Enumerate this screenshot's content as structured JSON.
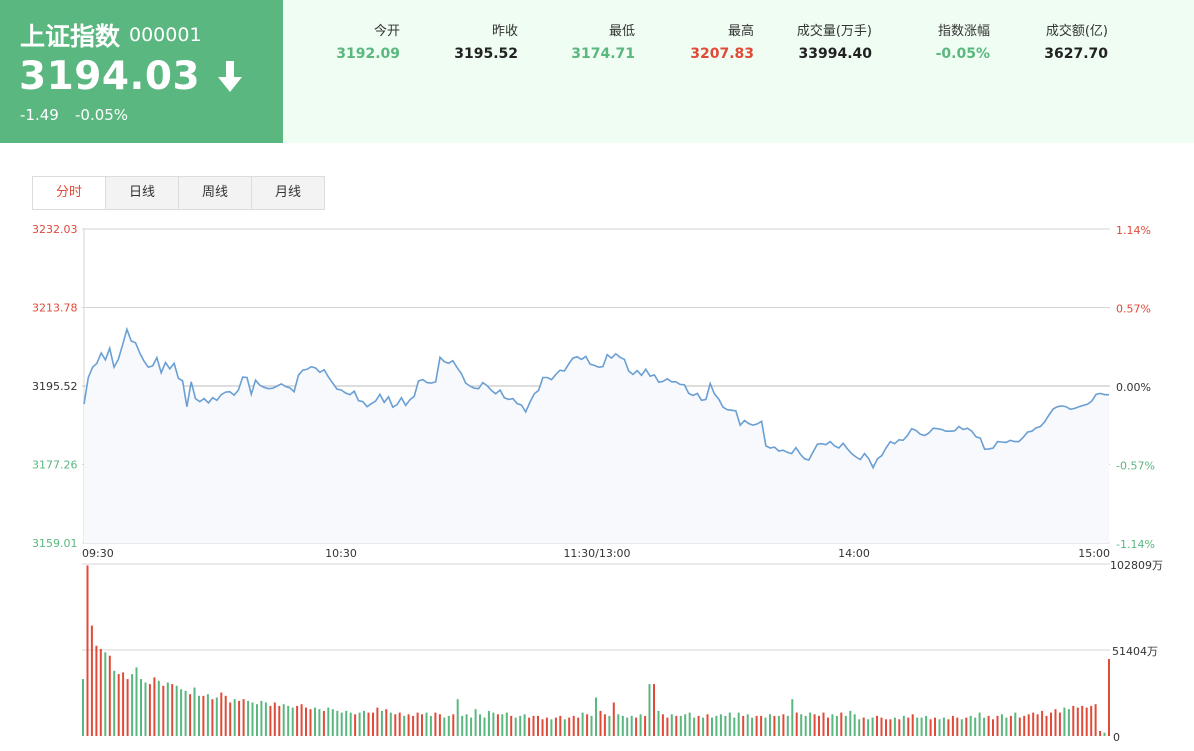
{
  "quote": {
    "name": "上证指数",
    "code": "000001",
    "price": "3194.03",
    "direction_icon": "arrow-down-icon",
    "change": "-1.49",
    "change_pct": "-0.05%",
    "color": "#5ab77f"
  },
  "stats": [
    {
      "label": "今开",
      "value": "3192.09",
      "tone": "green"
    },
    {
      "label": "昨收",
      "value": "3195.52",
      "tone": "dark"
    },
    {
      "label": "最低",
      "value": "3174.71",
      "tone": "green"
    },
    {
      "label": "最高",
      "value": "3207.83",
      "tone": "red"
    },
    {
      "label": "成交量(万手)",
      "value": "33994.40",
      "tone": "dark"
    },
    {
      "label": "指数涨幅",
      "value": "-0.05%",
      "tone": "green"
    },
    {
      "label": "成交额(亿)",
      "value": "3627.70",
      "tone": "dark"
    }
  ],
  "tabs": [
    {
      "label": "分时",
      "active": true
    },
    {
      "label": "日线",
      "active": false
    },
    {
      "label": "周线",
      "active": false
    },
    {
      "label": "月线",
      "active": false
    }
  ],
  "colors": {
    "up": "#e04a38",
    "down": "#5ab77f",
    "line": "#6a9fd4",
    "fill": "#f7f9fd",
    "grid": "#cccccc"
  },
  "chart_data": [
    {
      "type": "line",
      "title": "",
      "y_left_labels": [
        "3232.03",
        "3213.78",
        "3195.52",
        "3177.26",
        "3159.01"
      ],
      "y_right_labels": [
        "1.14%",
        "0.57%",
        "0.00%",
        "-0.57%",
        "-1.14%"
      ],
      "x_labels": [
        "09:30",
        "10:30",
        "11:30/13:00",
        "14:00",
        "15:00"
      ],
      "ylim": [
        3159.01,
        3232.03
      ],
      "reference": 3195.52,
      "series": [
        {
          "values": [
            3191.3,
            3197.5,
            3199.9,
            3200.8,
            3203.2,
            3201.6,
            3204.3,
            3199.9,
            3201.7,
            3205.1,
            3208.7,
            3206.0,
            3205.6,
            3203.2,
            3201.3,
            3199.9,
            3200.2,
            3202.1,
            3198.6,
            3201.0,
            3199.5,
            3200.8,
            3197.3,
            3196.7,
            3190.7,
            3196.5,
            3192.6,
            3191.9,
            3192.6,
            3191.6,
            3192.8,
            3192.2,
            3193.5,
            3194.1,
            3194.2,
            3193.4,
            3194.6,
            3197.6,
            3197.5,
            3193.6,
            3196.9,
            3195.7,
            3195.2,
            3194.9,
            3195.0,
            3195.5,
            3196.0,
            3195.4,
            3195.1,
            3194.2,
            3198.0,
            3199.2,
            3199.4,
            3200.0,
            3199.7,
            3198.7,
            3199.3,
            3197.6,
            3196.2,
            3194.8,
            3194.6,
            3193.9,
            3193.5,
            3194.3,
            3192.1,
            3191.9,
            3190.7,
            3191.4,
            3192.0,
            3193.6,
            3191.7,
            3193.0,
            3190.6,
            3191.2,
            3192.8,
            3191.0,
            3192.3,
            3193.1,
            3196.7,
            3197.0,
            3196.3,
            3196.2,
            3196.5,
            3202.2,
            3201.2,
            3200.8,
            3201.4,
            3199.8,
            3198.4,
            3196.2,
            3195.5,
            3195.0,
            3194.9,
            3196.3,
            3195.6,
            3194.5,
            3193.7,
            3194.6,
            3192.8,
            3192.4,
            3192.6,
            3191.4,
            3191.1,
            3189.5,
            3191.8,
            3193.7,
            3194.5,
            3197.5,
            3197.5,
            3197.0,
            3198.2,
            3199.2,
            3199.0,
            3200.6,
            3202.0,
            3202.3,
            3201.7,
            3202.4,
            3200.6,
            3200.3,
            3199.9,
            3200.0,
            3202.8,
            3202.0,
            3203.0,
            3202.2,
            3201.7,
            3199.0,
            3198.2,
            3199.1,
            3198.0,
            3199.4,
            3197.8,
            3198.1,
            3196.4,
            3196.6,
            3197.2,
            3196.5,
            3196.5,
            3195.9,
            3195.8,
            3193.8,
            3193.3,
            3193.8,
            3192.2,
            3192.4,
            3196.1,
            3193.7,
            3192.5,
            3190.6,
            3190.0,
            3189.9,
            3189.7,
            3186.4,
            3187.5,
            3186.8,
            3186.4,
            3186.7,
            3187.3,
            3181.6,
            3181.1,
            3181.3,
            3180.4,
            3180.6,
            3180.1,
            3179.8,
            3181.2,
            3179.7,
            3178.6,
            3178.3,
            3180.2,
            3182.0,
            3182.1,
            3181.9,
            3182.6,
            3181.6,
            3181.1,
            3182.2,
            3180.9,
            3179.8,
            3179.0,
            3178.4,
            3179.8,
            3178.6,
            3176.5,
            3178.6,
            3179.3,
            3181.1,
            3182.6,
            3182.1,
            3183.0,
            3182.9,
            3184.0,
            3185.6,
            3185.2,
            3184.3,
            3184.0,
            3184.6,
            3185.7,
            3185.6,
            3185.4,
            3185.0,
            3185.0,
            3185.1,
            3186.1,
            3185.4,
            3185.7,
            3185.0,
            3183.7,
            3183.4,
            3180.8,
            3180.9,
            3181.1,
            3182.6,
            3182.5,
            3182.4,
            3182.9,
            3182.6,
            3182.6,
            3183.6,
            3184.8,
            3185.0,
            3185.8,
            3186.1,
            3187.2,
            3188.8,
            3190.2,
            3190.7,
            3190.9,
            3190.7,
            3190.1,
            3190.3,
            3190.7,
            3191.0,
            3191.3,
            3192.0,
            3193.6,
            3193.8,
            3193.5,
            3193.5
          ]
        }
      ]
    },
    {
      "type": "bar",
      "title": "",
      "y_labels": [
        "102809万",
        "51404万",
        "0"
      ],
      "ylim": [
        0,
        102809
      ],
      "unit": "万",
      "values": [
        34000,
        102000,
        66000,
        54000,
        52000,
        50000,
        48000,
        39000,
        37000,
        38000,
        34000,
        37000,
        41000,
        34000,
        32000,
        31000,
        35000,
        33000,
        30000,
        32000,
        31000,
        30000,
        28000,
        27000,
        25000,
        29000,
        24000,
        24000,
        25000,
        22000,
        23000,
        26000,
        24000,
        20000,
        22000,
        21000,
        22000,
        21000,
        20000,
        19000,
        21000,
        20000,
        18000,
        20000,
        18000,
        19000,
        18000,
        17000,
        18000,
        19000,
        17000,
        16000,
        17000,
        16000,
        15000,
        17000,
        16000,
        15000,
        14000,
        15000,
        14000,
        13000,
        14000,
        15000,
        14000,
        14000,
        17000,
        15000,
        16000,
        14000,
        13000,
        14000,
        12000,
        13000,
        12000,
        14000,
        13000,
        14000,
        12000,
        14000,
        13000,
        11000,
        12000,
        13000,
        22000,
        12000,
        13000,
        11000,
        16000,
        13000,
        11000,
        15000,
        14000,
        13000,
        13000,
        14000,
        12000,
        11000,
        12000,
        13000,
        11000,
        12000,
        12000,
        10000,
        11000,
        10000,
        11000,
        12000,
        10000,
        11000,
        12000,
        11000,
        14000,
        13000,
        12000,
        23000,
        15000,
        13000,
        12000,
        20000,
        13000,
        12000,
        11000,
        12000,
        11000,
        13000,
        12000,
        31000,
        31000,
        15000,
        13000,
        11000,
        13000,
        12000,
        12000,
        13000,
        14000,
        11000,
        12000,
        11000,
        13000,
        11000,
        12000,
        13000,
        12000,
        14000,
        11000,
        14000,
        12000,
        13000,
        11000,
        12000,
        12000,
        11000,
        13000,
        12000,
        12000,
        13000,
        12000,
        22000,
        14000,
        13000,
        12000,
        14000,
        13000,
        12000,
        14000,
        11000,
        13000,
        12000,
        14000,
        12000,
        15000,
        13000,
        10000,
        11000,
        10000,
        11000,
        12000,
        11000,
        10000,
        10000,
        11000,
        10000,
        12000,
        11000,
        13000,
        11000,
        11000,
        12000,
        10000,
        11000,
        10000,
        11000,
        10000,
        12000,
        11000,
        10000,
        11000,
        12000,
        11000,
        14000,
        11000,
        12000,
        10000,
        12000,
        13000,
        11000,
        12000,
        14000,
        11000,
        12000,
        13000,
        14000,
        13000,
        15000,
        12000,
        14000,
        16000,
        14000,
        17000,
        16000,
        18000,
        17000,
        18000,
        17000,
        18000,
        19000,
        3000,
        2000,
        46000
      ]
    }
  ]
}
